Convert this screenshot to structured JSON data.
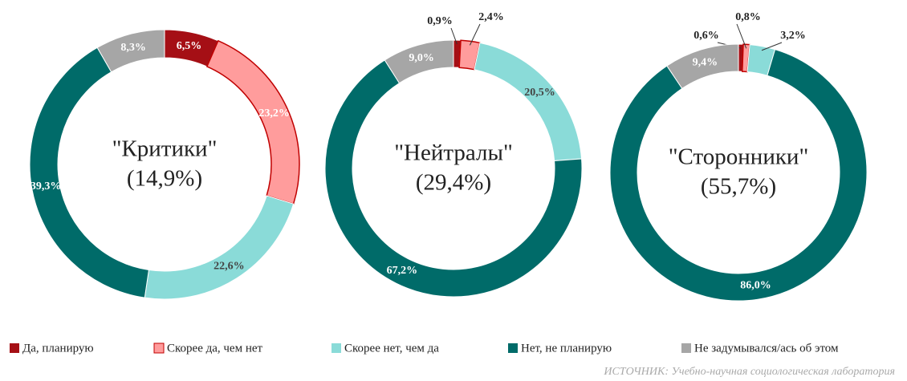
{
  "legend": {
    "names": [
      "Да, планирую",
      "Скорее да, чем нет",
      "Скорее нет, чем да",
      "Нет, не планирую",
      "Не задумывался/ась об этом"
    ],
    "colors": [
      "#a50f15",
      "#ff9c9c",
      "#8adbd8",
      "#006b69",
      "#a6a6a6"
    ]
  },
  "source": "ИСТОЧНИК: Учебно-научная социологическая лаборатория",
  "chart_data": [
    {
      "type": "pie",
      "donut": true,
      "title": "\"Критики\"",
      "subtitle": "(14,9%)",
      "values": [
        6.5,
        23.2,
        22.6,
        39.3,
        8.3
      ],
      "value_labels": [
        "6,5%",
        "23,2%",
        "22,6%",
        "39,3%",
        "8,3%"
      ]
    },
    {
      "type": "pie",
      "donut": true,
      "title": "\"Нейтралы\"",
      "subtitle": "(29,4%)",
      "values": [
        0.9,
        2.4,
        20.5,
        67.2,
        9.0
      ],
      "value_labels": [
        "0,9%",
        "2,4%",
        "20,5%",
        "67,2%",
        "9,0%"
      ]
    },
    {
      "type": "pie",
      "donut": true,
      "title": "\"Сторонники\"",
      "subtitle": "(55,7%)",
      "values": [
        0.6,
        0.8,
        3.2,
        86.0,
        9.4
      ],
      "value_labels": [
        "0,6%",
        "0,8%",
        "3,2%",
        "86,0%",
        "9,4%"
      ]
    }
  ]
}
